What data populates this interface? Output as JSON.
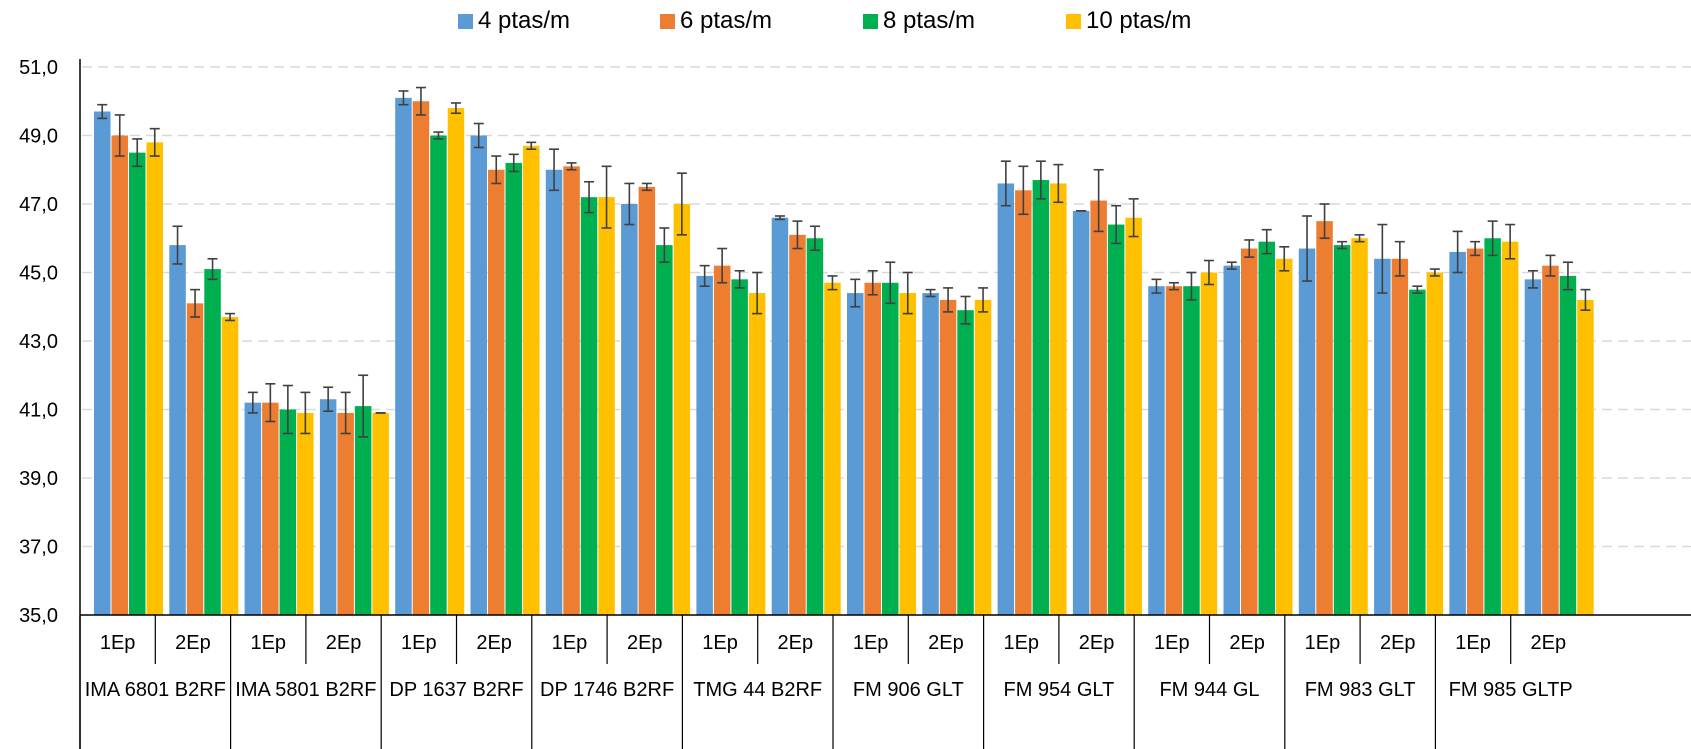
{
  "chart_data": {
    "type": "bar",
    "ylim": [
      35,
      51
    ],
    "y_ticks": [
      "35,0",
      "37,0",
      "39,0",
      "41,0",
      "43,0",
      "45,0",
      "47,0",
      "49,0",
      "51,0"
    ],
    "grid": true,
    "legend_position": "top",
    "groups": [
      "IMA 6801 B2RF",
      "IMA 5801 B2RF",
      "DP 1637 B2RF",
      "DP 1746 B2RF",
      "TMG 44 B2RF",
      "FM 906 GLT",
      "FM 954 GLT",
      "FM 944 GL",
      "FM 983 GLT",
      "FM 985 GLTP"
    ],
    "subcategories": [
      "1Ep",
      "2Ep"
    ],
    "series": [
      {
        "name": "4 ptas/m",
        "color": "#5B9BD5",
        "values": [
          49.7,
          45.8,
          41.2,
          41.3,
          50.1,
          49.0,
          48.0,
          47.0,
          44.9,
          46.6,
          44.4,
          44.4,
          47.6,
          46.8,
          44.6,
          45.2,
          45.7,
          45.4,
          45.6,
          44.8
        ],
        "errors": [
          0.2,
          0.55,
          0.3,
          0.35,
          0.2,
          0.35,
          0.6,
          0.6,
          0.3,
          0.05,
          0.4,
          0.1,
          0.65,
          0.0,
          0.2,
          0.1,
          0.95,
          1.0,
          0.6,
          0.25
        ]
      },
      {
        "name": "6 ptas/m",
        "color": "#ED7D31",
        "values": [
          49.0,
          44.1,
          41.2,
          40.9,
          50.0,
          48.0,
          48.1,
          47.5,
          45.2,
          46.1,
          44.7,
          44.2,
          47.4,
          47.1,
          44.6,
          45.7,
          46.5,
          45.4,
          45.7,
          45.2
        ],
        "errors": [
          0.6,
          0.4,
          0.55,
          0.6,
          0.4,
          0.4,
          0.1,
          0.1,
          0.5,
          0.4,
          0.35,
          0.35,
          0.7,
          0.9,
          0.1,
          0.25,
          0.5,
          0.5,
          0.2,
          0.3
        ]
      },
      {
        "name": "8 ptas/m",
        "color": "#00B050",
        "values": [
          48.5,
          45.1,
          41.0,
          41.1,
          49.0,
          48.2,
          47.2,
          45.8,
          44.8,
          46.0,
          44.7,
          43.9,
          47.7,
          46.4,
          44.6,
          45.9,
          45.8,
          44.5,
          46.0,
          44.9
        ],
        "errors": [
          0.4,
          0.3,
          0.7,
          0.9,
          0.1,
          0.25,
          0.45,
          0.5,
          0.25,
          0.35,
          0.6,
          0.4,
          0.55,
          0.55,
          0.4,
          0.35,
          0.1,
          0.1,
          0.5,
          0.4
        ]
      },
      {
        "name": "10 ptas/m",
        "color": "#FFC000",
        "values": [
          48.8,
          43.7,
          40.9,
          40.9,
          49.8,
          48.7,
          47.2,
          47.0,
          44.4,
          44.7,
          44.4,
          44.2,
          47.6,
          46.6,
          45.0,
          45.4,
          46.0,
          45.0,
          45.9,
          44.2
        ],
        "errors": [
          0.4,
          0.1,
          0.6,
          0.0,
          0.15,
          0.1,
          0.9,
          0.9,
          0.6,
          0.2,
          0.6,
          0.35,
          0.55,
          0.55,
          0.35,
          0.35,
          0.1,
          0.1,
          0.5,
          0.3
        ]
      }
    ]
  }
}
